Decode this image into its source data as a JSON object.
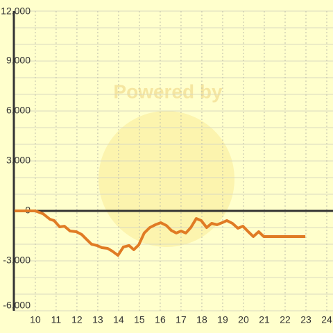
{
  "chart_data": {
    "type": "line",
    "watermark": "Powered by",
    "x": [
      9.0,
      10.0,
      10.37,
      10.7,
      10.9,
      11.17,
      11.4,
      11.67,
      11.97,
      12.23,
      12.43,
      12.7,
      12.97,
      13.2,
      13.47,
      13.7,
      13.97,
      14.23,
      14.5,
      14.73,
      14.97,
      15.23,
      15.5,
      15.77,
      16.03,
      16.3,
      16.53,
      16.77,
      17.0,
      17.23,
      17.47,
      17.73,
      17.97,
      18.23,
      18.47,
      18.73,
      18.97,
      19.2,
      19.47,
      19.73,
      19.97,
      20.23,
      20.47,
      20.73,
      20.97,
      22.97
    ],
    "series": [
      {
        "color": "#e07b24",
        "values": [
          0,
          0,
          -170,
          -500,
          -580,
          -960,
          -920,
          -1210,
          -1250,
          -1420,
          -1670,
          -2000,
          -2080,
          -2210,
          -2250,
          -2420,
          -2670,
          -2170,
          -2080,
          -2330,
          -2040,
          -1330,
          -1000,
          -830,
          -710,
          -880,
          -1170,
          -1330,
          -1210,
          -1330,
          -1000,
          -460,
          -580,
          -1000,
          -750,
          -830,
          -710,
          -580,
          -750,
          -1040,
          -920,
          -1250,
          -1540,
          -1250,
          -1540,
          -1540
        ]
      }
    ],
    "xlim": [
      8.97,
      24.3
    ],
    "xticks": [
      10,
      11,
      12,
      13,
      14,
      15,
      16,
      17,
      18,
      19,
      20,
      21,
      22,
      23,
      24
    ],
    "ylim": [
      -6000,
      12000
    ],
    "yticks": [
      {
        "value": -6000,
        "label": "-6,000"
      },
      {
        "value": -3000,
        "label": "-3,000"
      },
      0,
      {
        "value": 3000,
        "label": "3,000"
      },
      {
        "value": 6000,
        "label": "6,000"
      },
      {
        "value": 9000,
        "label": "9,000"
      },
      {
        "value": 12000,
        "label": "12,000"
      }
    ],
    "y_minor_ticks": [
      -5000,
      -4000,
      -2000,
      -1000,
      1000,
      2000,
      4000,
      5000,
      7000,
      8000,
      10000,
      11000
    ],
    "grid": true
  }
}
